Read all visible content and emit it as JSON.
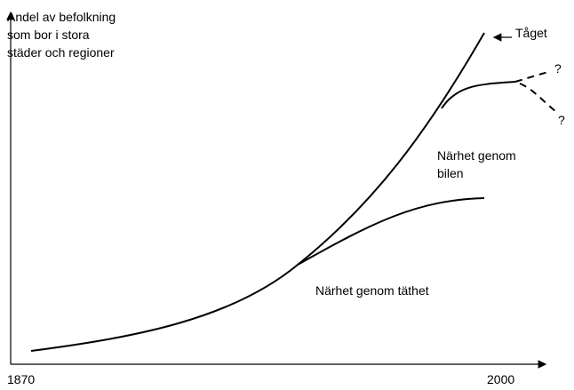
{
  "y_axis_label": [
    "Andel av befolkning",
    "som bor i stora",
    "städer och regioner"
  ],
  "annotations": {
    "train": "Tåget",
    "question_up": "?",
    "question_down": "?",
    "car": [
      "Närhet genom",
      "bilen"
    ],
    "density": "Närhet genom täthet"
  },
  "x_axis_labels": [
    "1870",
    "2000"
  ]
}
